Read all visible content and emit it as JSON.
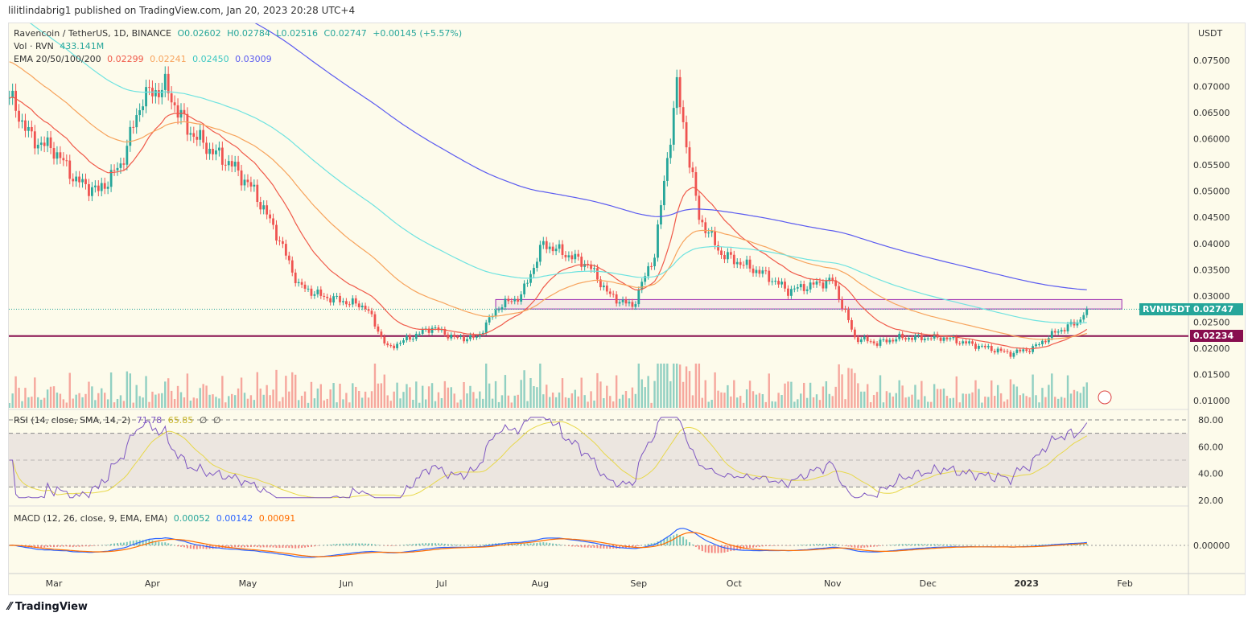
{
  "header": {
    "published": "lilitlindabrig1 published on TradingView.com, Jan 20, 2023 20:28 UTC+4"
  },
  "legend": {
    "symbol": "Ravencoin / TetherUS, 1D, BINANCE",
    "o": "O0.02602",
    "h": "H0.02784",
    "l": "L0.02516",
    "c": "C0.02747",
    "chg": "+0.00145 (+5.57%)",
    "vol_label": "Vol · RVN",
    "vol_value": "433.141M",
    "ema_label": "EMA 20/50/100/200",
    "ema_values": [
      "0.02299",
      "0.02241",
      "0.02450",
      "0.03009"
    ],
    "rsi_label": "RSI (14, close, SMA, 14, 2)",
    "rsi_values": [
      "71.78",
      "65.85",
      "∅",
      "∅"
    ],
    "macd_label": "MACD (12, 26, close, 9, EMA, EMA)",
    "macd_values": [
      "0.00052",
      "0.00142",
      "0.00091"
    ]
  },
  "price_axis": {
    "unit": "USDT",
    "ticks": [
      "0.07500",
      "0.07000",
      "0.06500",
      "0.06000",
      "0.05500",
      "0.05000",
      "0.04500",
      "0.04000",
      "0.03500",
      "0.03000",
      "0.02500",
      "0.02000",
      "0.01500",
      "0.01000"
    ]
  },
  "rsi_axis": {
    "ticks": [
      "80.00",
      "60.00",
      "40.00",
      "20.00"
    ]
  },
  "macd_axis": {
    "ticks": [
      "0.00000"
    ]
  },
  "time_axis": {
    "labels": [
      "Mar",
      "Apr",
      "May",
      "Jun",
      "Jul",
      "Aug",
      "Sep",
      "Oct",
      "Nov",
      "Dec",
      "2023",
      "Feb"
    ]
  },
  "tags": {
    "symbol": "RVNUSDT",
    "last": "0.02747",
    "level": "0.02234"
  },
  "colors": {
    "up": "#26a69a",
    "down": "#ef5350",
    "ema20": "#f05a4a",
    "ema50": "#f7a35c",
    "ema100": "#6fe3e0",
    "ema200": "#5b5bf0",
    "level": "#880e4f",
    "zone": "#9c27b0",
    "rsi": "#7e57c2",
    "rsi_ma": "#e8d84a",
    "macd": "#2962ff",
    "signal": "#ff6d00"
  },
  "footer": {
    "brand": "TradingView"
  },
  "chart_data": {
    "type": "candlestick",
    "title": "Ravencoin / TetherUS, 1D, BINANCE",
    "xlabel": "",
    "ylabel": "USDT",
    "ylim": [
      0.0085,
      0.078
    ],
    "weekly_x": [
      "2022-02-15",
      "2022-02-22",
      "2022-03-01",
      "2022-03-08",
      "2022-03-15",
      "2022-03-22",
      "2022-03-29",
      "2022-04-05",
      "2022-04-12",
      "2022-04-19",
      "2022-04-26",
      "2022-05-03",
      "2022-05-10",
      "2022-05-17",
      "2022-05-24",
      "2022-05-31",
      "2022-06-07",
      "2022-06-14",
      "2022-06-21",
      "2022-06-28",
      "2022-07-05",
      "2022-07-12",
      "2022-07-19",
      "2022-07-26",
      "2022-08-02",
      "2022-08-09",
      "2022-08-16",
      "2022-08-23",
      "2022-08-30",
      "2022-09-06",
      "2022-09-13",
      "2022-09-20",
      "2022-09-27",
      "2022-10-04",
      "2022-10-11",
      "2022-10-18",
      "2022-10-25",
      "2022-11-01",
      "2022-11-08",
      "2022-11-15",
      "2022-11-22",
      "2022-11-29",
      "2022-12-06",
      "2022-12-13",
      "2022-12-20",
      "2022-12-27",
      "2023-01-03",
      "2023-01-10",
      "2023-01-17",
      "2023-01-20"
    ],
    "weekly_close": [
      0.068,
      0.06,
      0.058,
      0.052,
      0.05,
      0.055,
      0.068,
      0.07,
      0.062,
      0.058,
      0.055,
      0.05,
      0.042,
      0.032,
      0.03,
      0.029,
      0.028,
      0.02,
      0.022,
      0.024,
      0.022,
      0.022,
      0.028,
      0.03,
      0.04,
      0.038,
      0.036,
      0.03,
      0.028,
      0.038,
      0.07,
      0.045,
      0.038,
      0.036,
      0.034,
      0.031,
      0.032,
      0.033,
      0.022,
      0.021,
      0.022,
      0.022,
      0.022,
      0.021,
      0.02,
      0.019,
      0.02,
      0.023,
      0.025,
      0.02747
    ],
    "levels": [
      {
        "price": 0.02234,
        "type": "horizontal-line"
      },
      {
        "price_low": 0.0275,
        "price_high": 0.0293,
        "from": "2022-07-18",
        "to": "2023-01-31",
        "type": "zone"
      }
    ],
    "grid": false,
    "legend": "top-left"
  }
}
